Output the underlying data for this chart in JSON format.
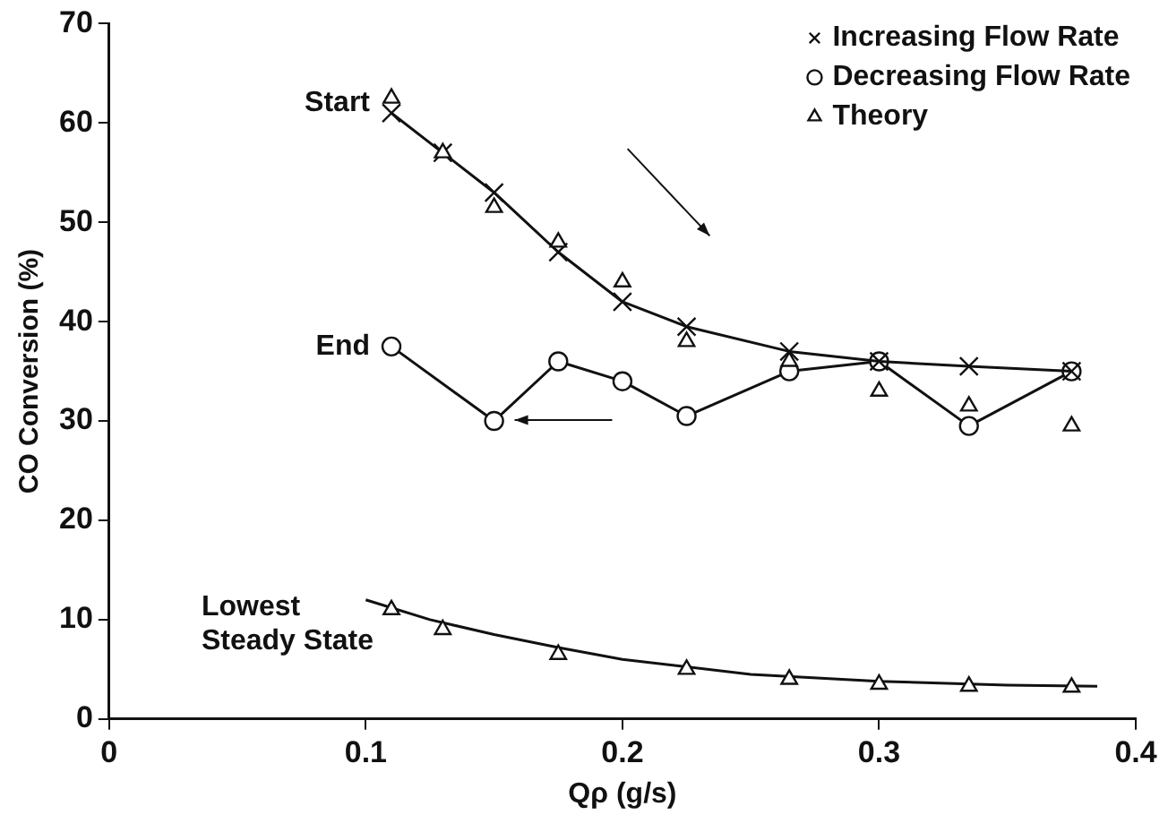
{
  "chart_data": {
    "type": "line",
    "xlabel": "Qρ (g/s)",
    "ylabel": "CO Conversion (%)",
    "xlim": [
      0,
      0.4
    ],
    "xticks": [
      0,
      0.1,
      0.2,
      0.3,
      0.4
    ],
    "ylim": [
      0,
      70
    ],
    "yticks": [
      0,
      10,
      20,
      30,
      40,
      50,
      60,
      70
    ],
    "grid": false,
    "legend": "top right",
    "series": [
      {
        "name": "Increasing Flow Rate",
        "marker": "cross",
        "color": "#111111",
        "x": [
          0.11,
          0.13,
          0.15,
          0.175,
          0.2,
          0.225,
          0.265,
          0.3,
          0.335,
          0.375
        ],
        "values": [
          61,
          57,
          53,
          47,
          42,
          39.5,
          37,
          36,
          35.5,
          35
        ]
      },
      {
        "name": "Decreasing Flow Rate",
        "marker": "circle",
        "color": "#111111",
        "x": [
          0.11,
          0.15,
          0.175,
          0.2,
          0.225,
          0.265,
          0.3,
          0.335,
          0.375
        ],
        "values": [
          37.5,
          30,
          36,
          34,
          30.5,
          35,
          36,
          29.5,
          35
        ]
      },
      {
        "name": "Theory",
        "type": "scatter",
        "marker": "triangle",
        "color": "#111111",
        "x": [
          0.11,
          0.13,
          0.15,
          0.175,
          0.2,
          0.225,
          0.265,
          0.3,
          0.335,
          0.375,
          0.11,
          0.13,
          0.175,
          0.225,
          0.265,
          0.3,
          0.335,
          0.375
        ],
        "values": [
          62.5,
          57,
          51.5,
          48,
          44,
          38,
          36,
          33,
          31.5,
          29.5,
          11,
          9,
          6.5,
          5,
          4,
          3.5,
          3.3,
          3.2
        ]
      },
      {
        "marker": "none",
        "color": "#111111",
        "x": [
          0.1,
          0.125,
          0.15,
          0.175,
          0.2,
          0.25,
          0.3,
          0.35,
          0.385
        ],
        "values": [
          12,
          10,
          8.5,
          7.2,
          6,
          4.5,
          3.8,
          3.4,
          3.3
        ]
      }
    ],
    "annotations": [
      {
        "text": "Start",
        "x": 0.11,
        "y": 62
      },
      {
        "text": "End",
        "x": 0.11,
        "y": 37.5
      },
      "Lowest\nSteady State"
    ]
  }
}
